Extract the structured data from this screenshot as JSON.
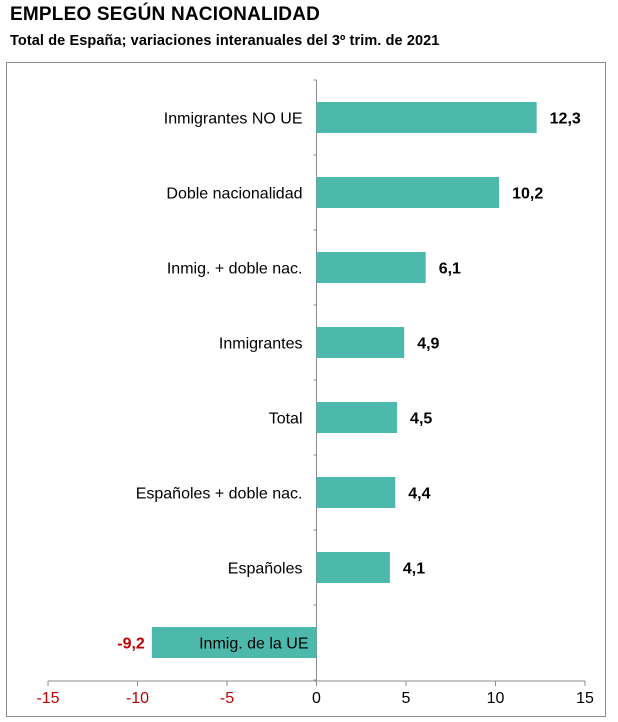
{
  "title": "EMPLEO SEGÚN NACIONALIDAD",
  "subtitle": "Total de España; variaciones interanuales del 3º trim. de 2021",
  "chart_data": {
    "type": "bar",
    "orientation": "horizontal",
    "categories": [
      "Inmigrantes NO UE",
      "Doble nacionalidad",
      "Inmig. + doble nac.",
      "Inmigrantes",
      "Total",
      "Españoles + doble nac.",
      "Españoles",
      "Inmig. de la UE"
    ],
    "values": [
      12.3,
      10.2,
      6.1,
      4.9,
      4.5,
      4.4,
      4.1,
      -9.2
    ],
    "value_labels": [
      "12,3",
      "10,2",
      "6,1",
      "4,9",
      "4,5",
      "4,4",
      "4,1",
      "-9,2"
    ],
    "xlim": [
      -15,
      15
    ],
    "xticks": [
      -15,
      -10,
      -5,
      0,
      5,
      10,
      15
    ],
    "xtick_labels": [
      "-15",
      "-10",
      "-5",
      "0",
      "5",
      "10",
      "15"
    ],
    "xlabel": "",
    "ylabel": "",
    "grid": false,
    "legend": "none",
    "bar_color": "#4db8ac",
    "negative_label_color": "#c00000"
  }
}
